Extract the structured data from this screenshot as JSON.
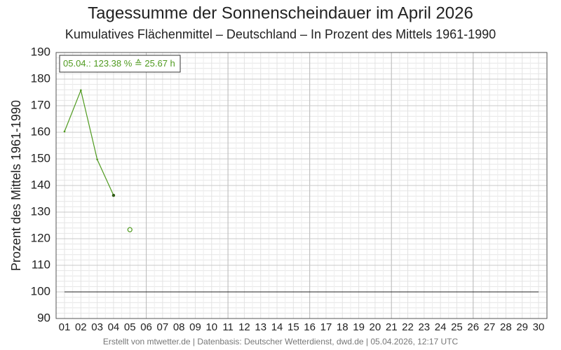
{
  "chart_data": {
    "type": "line",
    "title": "Tagessumme der Sonnenscheindauer im April 2026",
    "subtitle": "Kumulatives Flächenmittel – Deutschland – In Prozent des Mittels 1961-1990",
    "y_label": "Prozent des Mittels 1961-1990",
    "annotation": "05.04.: 123.38 % ≙ 25.67 h",
    "footer": "Erstellt von mtwetter.de | Datenbasis: Deutscher Wetterdienst, dwd.de | 05.04.2026, 12:17 UTC",
    "categories": [
      "01",
      "02",
      "03",
      "04",
      "05",
      "06",
      "07",
      "08",
      "09",
      "10",
      "11",
      "12",
      "13",
      "14",
      "15",
      "16",
      "17",
      "18",
      "19",
      "20",
      "21",
      "22",
      "23",
      "24",
      "25",
      "26",
      "27",
      "28",
      "29",
      "30"
    ],
    "series": [
      {
        "color": "#4f9a1f",
        "values": [
          160.3,
          175.8,
          149.8,
          136.3,
          null,
          null,
          null,
          null,
          null,
          null,
          null,
          null,
          null,
          null,
          null,
          null,
          null,
          null,
          null,
          null,
          null,
          null,
          null,
          null,
          null,
          null,
          null,
          null,
          null,
          null
        ]
      },
      {
        "color": "#4f9a1f",
        "marker": "open-circle",
        "values": [
          null,
          null,
          null,
          null,
          123.38,
          null,
          null,
          null,
          null,
          null,
          null,
          null,
          null,
          null,
          null,
          null,
          null,
          null,
          null,
          null,
          null,
          null,
          null,
          null,
          null,
          null,
          null,
          null,
          null,
          null
        ]
      }
    ],
    "reference_line": 100,
    "ylim": [
      90,
      190
    ],
    "yticks": [
      90,
      100,
      110,
      120,
      130,
      140,
      150,
      160,
      170,
      180,
      190
    ],
    "grid": true
  }
}
